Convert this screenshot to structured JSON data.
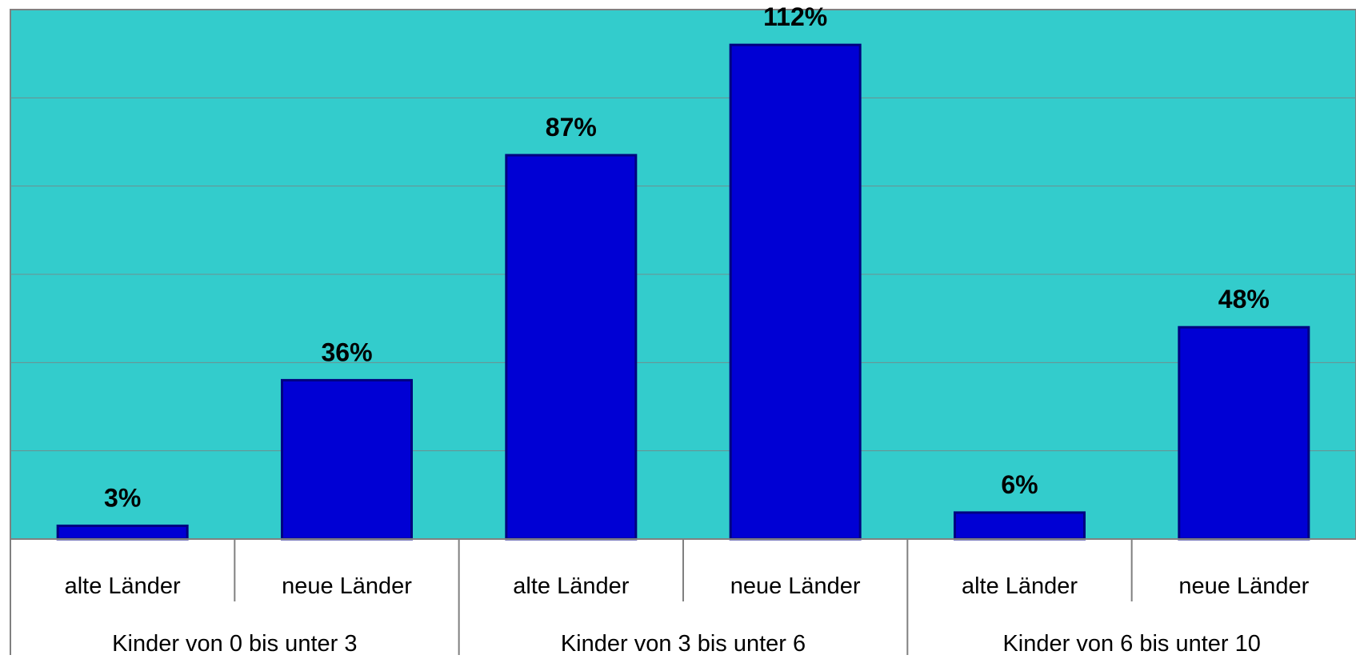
{
  "colors": {
    "plot_background": "#33cccc",
    "bar_fill": "#0000d4",
    "bar_stroke": "#000080",
    "gridline": "#6f8f8f",
    "axis_line": "#808080"
  },
  "chart_data": {
    "type": "bar",
    "title": "",
    "xlabel": "",
    "ylabel": "",
    "grid": true,
    "legend": "none",
    "ylim": [
      0,
      120
    ],
    "y_grid_step": 20,
    "categories": [
      {
        "group": "Kinder von 0 bis unter 3",
        "label": "alte Länder"
      },
      {
        "group": "Kinder von 0 bis unter 3",
        "label": "neue Länder"
      },
      {
        "group": "Kinder von 3 bis unter 6",
        "label": "alte Länder"
      },
      {
        "group": "Kinder von 3 bis unter 6",
        "label": "neue Länder"
      },
      {
        "group": "Kinder von 6 bis unter 10",
        "label": "alte Länder"
      },
      {
        "group": "Kinder von 6 bis unter 10",
        "label": "neue Länder"
      }
    ],
    "groups": [
      "Kinder von 0 bis unter 3",
      "Kinder von 3 bis unter 6",
      "Kinder von 6 bis unter 10"
    ],
    "values": [
      3,
      36,
      87,
      112,
      6,
      48
    ],
    "data_labels": [
      "3%",
      "36%",
      "87%",
      "112%",
      "6%",
      "48%"
    ]
  }
}
